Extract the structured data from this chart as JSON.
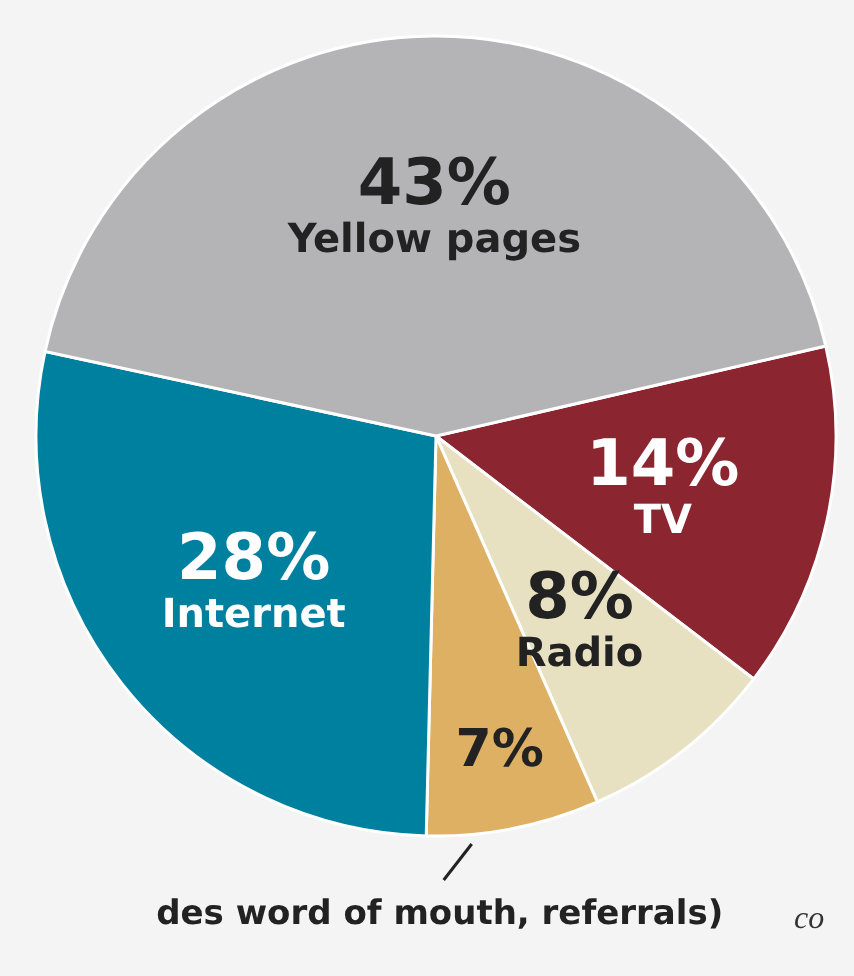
{
  "chart_data": {
    "type": "pie",
    "categories": [
      "TV",
      "Radio",
      "des word of mouth, referrals)",
      "Internet",
      "Yellow pages"
    ],
    "values": [
      14,
      8,
      7,
      28,
      43
    ],
    "value_labels": [
      "14%",
      "8%",
      "7%",
      "28%",
      "43%"
    ],
    "colors": [
      "#8b2630",
      "#e8e1c1",
      "#deb064",
      "#00809f",
      "#b4b4b6"
    ],
    "annotations": [
      "co"
    ]
  }
}
